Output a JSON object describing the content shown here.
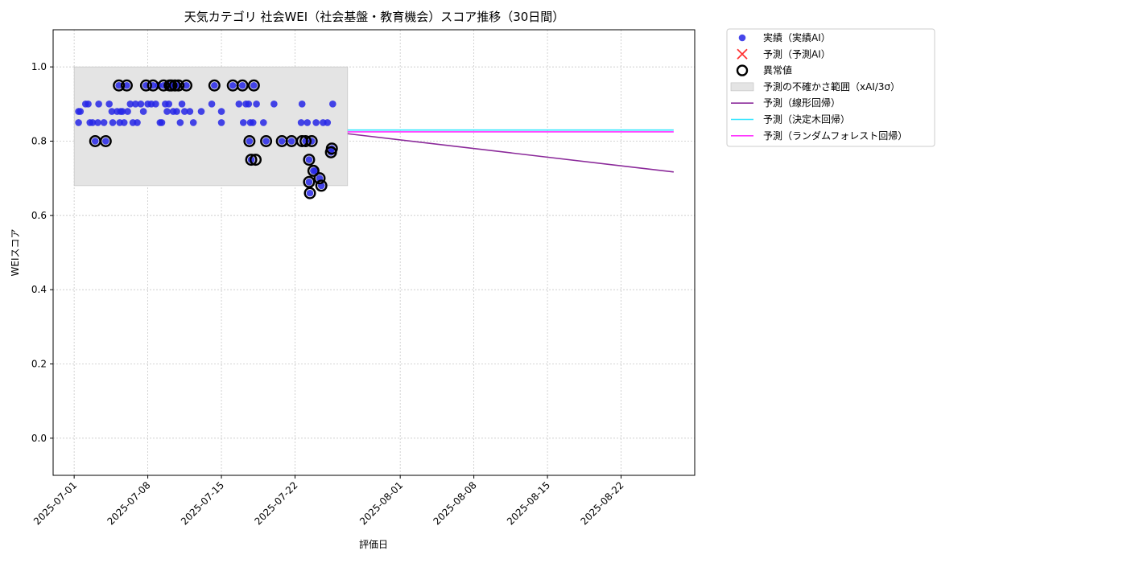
{
  "chart_data": {
    "type": "scatter",
    "title": "天気カテゴリ 社会WEI（社会基盤・教育機会）スコア推移（30日間）",
    "xlabel": "評価日",
    "ylabel": "WEIスコア",
    "ylim": [
      -0.1,
      1.1
    ],
    "xlim": [
      "2025-06-29",
      "2025-08-29"
    ],
    "y_ticks": [
      "0.0",
      "0.2",
      "0.4",
      "0.6",
      "0.8",
      "1.0"
    ],
    "x_ticks": [
      "2025-07-01",
      "2025-07-08",
      "2025-07-15",
      "2025-07-22",
      "2025-08-01",
      "2025-08-08",
      "2025-08-15",
      "2025-08-22"
    ],
    "grid": true,
    "legend_position": "outside top-right",
    "colors": {
      "actual": "#2626e6",
      "predicted": "#ff3333",
      "outlier": "#000000",
      "band": "#e4e4e4",
      "linear": "#8b2a9a",
      "tree": "#33e6ff",
      "forest": "#ff33ff"
    },
    "uncertainty_band": {
      "x": [
        "2025-07-01",
        "2025-07-27"
      ],
      "y": [
        0.68,
        1.0
      ]
    },
    "actual": [
      [
        "2025-07-01T10:00",
        0.88
      ],
      [
        "2025-07-01T10:00",
        0.85
      ],
      [
        "2025-07-01T14:00",
        0.88
      ],
      [
        "2025-07-02T02:00",
        0.9
      ],
      [
        "2025-07-02T08:00",
        0.9
      ],
      [
        "2025-07-02T12:00",
        0.85
      ],
      [
        "2025-07-02T18:00",
        0.85
      ],
      [
        "2025-07-03T00:00",
        0.8
      ],
      [
        "2025-07-03T06:00",
        0.85
      ],
      [
        "2025-07-03T08:00",
        0.9
      ],
      [
        "2025-07-03T20:00",
        0.85
      ],
      [
        "2025-07-04T00:00",
        0.8
      ],
      [
        "2025-07-04T08:00",
        0.9
      ],
      [
        "2025-07-04T14:00",
        0.88
      ],
      [
        "2025-07-04T16:00",
        0.85
      ],
      [
        "2025-07-05T02:00",
        0.88
      ],
      [
        "2025-07-05T06:00",
        0.95
      ],
      [
        "2025-07-05T08:00",
        0.85
      ],
      [
        "2025-07-05T10:00",
        0.88
      ],
      [
        "2025-07-05T14:00",
        0.88
      ],
      [
        "2025-07-05T18:00",
        0.85
      ],
      [
        "2025-07-06T00:00",
        0.95
      ],
      [
        "2025-07-06T02:00",
        0.88
      ],
      [
        "2025-07-06T08:00",
        0.9
      ],
      [
        "2025-07-06T14:00",
        0.85
      ],
      [
        "2025-07-06T20:00",
        0.9
      ],
      [
        "2025-07-07T00:00",
        0.85
      ],
      [
        "2025-07-07T08:00",
        0.9
      ],
      [
        "2025-07-07T14:00",
        0.88
      ],
      [
        "2025-07-07T20:00",
        0.95
      ],
      [
        "2025-07-08T00:00",
        0.9
      ],
      [
        "2025-07-08T08:00",
        0.9
      ],
      [
        "2025-07-08T12:00",
        0.95
      ],
      [
        "2025-07-08T18:00",
        0.9
      ],
      [
        "2025-07-09T00:00",
        0.95
      ],
      [
        "2025-07-09T04:00",
        0.85
      ],
      [
        "2025-07-09T08:00",
        0.85
      ],
      [
        "2025-07-09T12:00",
        0.95
      ],
      [
        "2025-07-09T16:00",
        0.9
      ],
      [
        "2025-07-09T20:00",
        0.88
      ],
      [
        "2025-07-10T00:00",
        0.9
      ],
      [
        "2025-07-10T02:00",
        0.95
      ],
      [
        "2025-07-10T06:00",
        0.95
      ],
      [
        "2025-07-10T10:00",
        0.88
      ],
      [
        "2025-07-10T14:00",
        0.95
      ],
      [
        "2025-07-10T18:00",
        0.88
      ],
      [
        "2025-07-10T22:00",
        0.95
      ],
      [
        "2025-07-11T02:00",
        0.85
      ],
      [
        "2025-07-11T06:00",
        0.9
      ],
      [
        "2025-07-11T12:00",
        0.88
      ],
      [
        "2025-07-11T16:00",
        0.95
      ],
      [
        "2025-07-12T00:00",
        0.88
      ],
      [
        "2025-07-12T08:00",
        0.85
      ],
      [
        "2025-07-13T02:00",
        0.88
      ],
      [
        "2025-07-14T02:00",
        0.9
      ],
      [
        "2025-07-14T08:00",
        0.95
      ],
      [
        "2025-07-15T00:00",
        0.88
      ],
      [
        "2025-07-15T00:00",
        0.85
      ],
      [
        "2025-07-16T02:00",
        0.95
      ],
      [
        "2025-07-16T16:00",
        0.9
      ],
      [
        "2025-07-17T00:00",
        0.95
      ],
      [
        "2025-07-17T02:00",
        0.85
      ],
      [
        "2025-07-17T08:00",
        0.9
      ],
      [
        "2025-07-17T14:00",
        0.9
      ],
      [
        "2025-07-17T16:00",
        0.8
      ],
      [
        "2025-07-17T18:00",
        0.85
      ],
      [
        "2025-07-17T20:00",
        0.75
      ],
      [
        "2025-07-18T00:00",
        0.85
      ],
      [
        "2025-07-18T02:00",
        0.95
      ],
      [
        "2025-07-18T08:00",
        0.9
      ],
      [
        "2025-07-19T00:00",
        0.85
      ],
      [
        "2025-07-19T06:00",
        0.8
      ],
      [
        "2025-07-20T00:00",
        0.9
      ],
      [
        "2025-07-20T18:00",
        0.8
      ],
      [
        "2025-07-21T16:00",
        0.8
      ],
      [
        "2025-07-22T14:00",
        0.85
      ],
      [
        "2025-07-22T16:00",
        0.9
      ],
      [
        "2025-07-23T00:00",
        0.8
      ],
      [
        "2025-07-23T04:00",
        0.85
      ],
      [
        "2025-07-23T08:00",
        0.75
      ],
      [
        "2025-07-23T08:00",
        0.69
      ],
      [
        "2025-07-23T10:00",
        0.66
      ],
      [
        "2025-07-23T14:00",
        0.8
      ],
      [
        "2025-07-23T18:00",
        0.72
      ],
      [
        "2025-07-23T22:00",
        0.72
      ],
      [
        "2025-07-24T00:00",
        0.85
      ],
      [
        "2025-07-24T08:00",
        0.7
      ],
      [
        "2025-07-24T12:00",
        0.68
      ],
      [
        "2025-07-24T16:00",
        0.85
      ],
      [
        "2025-07-25T02:00",
        0.85
      ],
      [
        "2025-07-25T10:00",
        0.77
      ],
      [
        "2025-07-25T12:00",
        0.78
      ],
      [
        "2025-07-25T14:00",
        0.9
      ]
    ],
    "outliers": [
      [
        "2025-07-03T00:00",
        0.8
      ],
      [
        "2025-07-04T00:00",
        0.8
      ],
      [
        "2025-07-05T06:00",
        0.95
      ],
      [
        "2025-07-06T00:00",
        0.95
      ],
      [
        "2025-07-07T20:00",
        0.95
      ],
      [
        "2025-07-08T12:00",
        0.95
      ],
      [
        "2025-07-09T12:00",
        0.95
      ],
      [
        "2025-07-10T02:00",
        0.95
      ],
      [
        "2025-07-10T06:00",
        0.95
      ],
      [
        "2025-07-10T14:00",
        0.95
      ],
      [
        "2025-07-10T22:00",
        0.95
      ],
      [
        "2025-07-11T16:00",
        0.95
      ],
      [
        "2025-07-14T08:00",
        0.95
      ],
      [
        "2025-07-16T02:00",
        0.95
      ],
      [
        "2025-07-17T00:00",
        0.95
      ],
      [
        "2025-07-18T02:00",
        0.95
      ],
      [
        "2025-07-17T16:00",
        0.8
      ],
      [
        "2025-07-17T20:00",
        0.75
      ],
      [
        "2025-07-18T06:00",
        0.75
      ],
      [
        "2025-07-19T06:00",
        0.8
      ],
      [
        "2025-07-20T18:00",
        0.8
      ],
      [
        "2025-07-21T16:00",
        0.8
      ],
      [
        "2025-07-22T16:00",
        0.8
      ],
      [
        "2025-07-23T00:00",
        0.8
      ],
      [
        "2025-07-23T08:00",
        0.75
      ],
      [
        "2025-07-23T08:00",
        0.69
      ],
      [
        "2025-07-23T10:00",
        0.66
      ],
      [
        "2025-07-23T14:00",
        0.8
      ],
      [
        "2025-07-23T18:00",
        0.72
      ],
      [
        "2025-07-24T08:00",
        0.7
      ],
      [
        "2025-07-24T12:00",
        0.68
      ],
      [
        "2025-07-25T10:00",
        0.77
      ],
      [
        "2025-07-25T12:00",
        0.78
      ]
    ],
    "forecast_lines": [
      {
        "key": "linear",
        "x": [
          "2025-07-27",
          "2025-08-27"
        ],
        "y": [
          0.82,
          0.717
        ]
      },
      {
        "key": "tree",
        "x": [
          "2025-07-27",
          "2025-08-27"
        ],
        "y": [
          0.83,
          0.83
        ]
      },
      {
        "key": "forest",
        "x": [
          "2025-07-27",
          "2025-08-27"
        ],
        "y": [
          0.825,
          0.825
        ]
      }
    ],
    "legend": [
      {
        "key": "actual",
        "marker": "dot",
        "label": "実績（実績AI）"
      },
      {
        "key": "predicted",
        "marker": "x",
        "label": "予測（予測AI）"
      },
      {
        "key": "outlier",
        "marker": "ring",
        "label": "異常値"
      },
      {
        "key": "band",
        "marker": "patch",
        "label": "予測の不確かさ範囲（xAI/3σ）"
      },
      {
        "key": "linear",
        "marker": "line",
        "label": "予測（線形回帰）"
      },
      {
        "key": "tree",
        "marker": "line",
        "label": "予測（決定木回帰）"
      },
      {
        "key": "forest",
        "marker": "line",
        "label": "予測（ランダムフォレスト回帰）"
      }
    ]
  }
}
